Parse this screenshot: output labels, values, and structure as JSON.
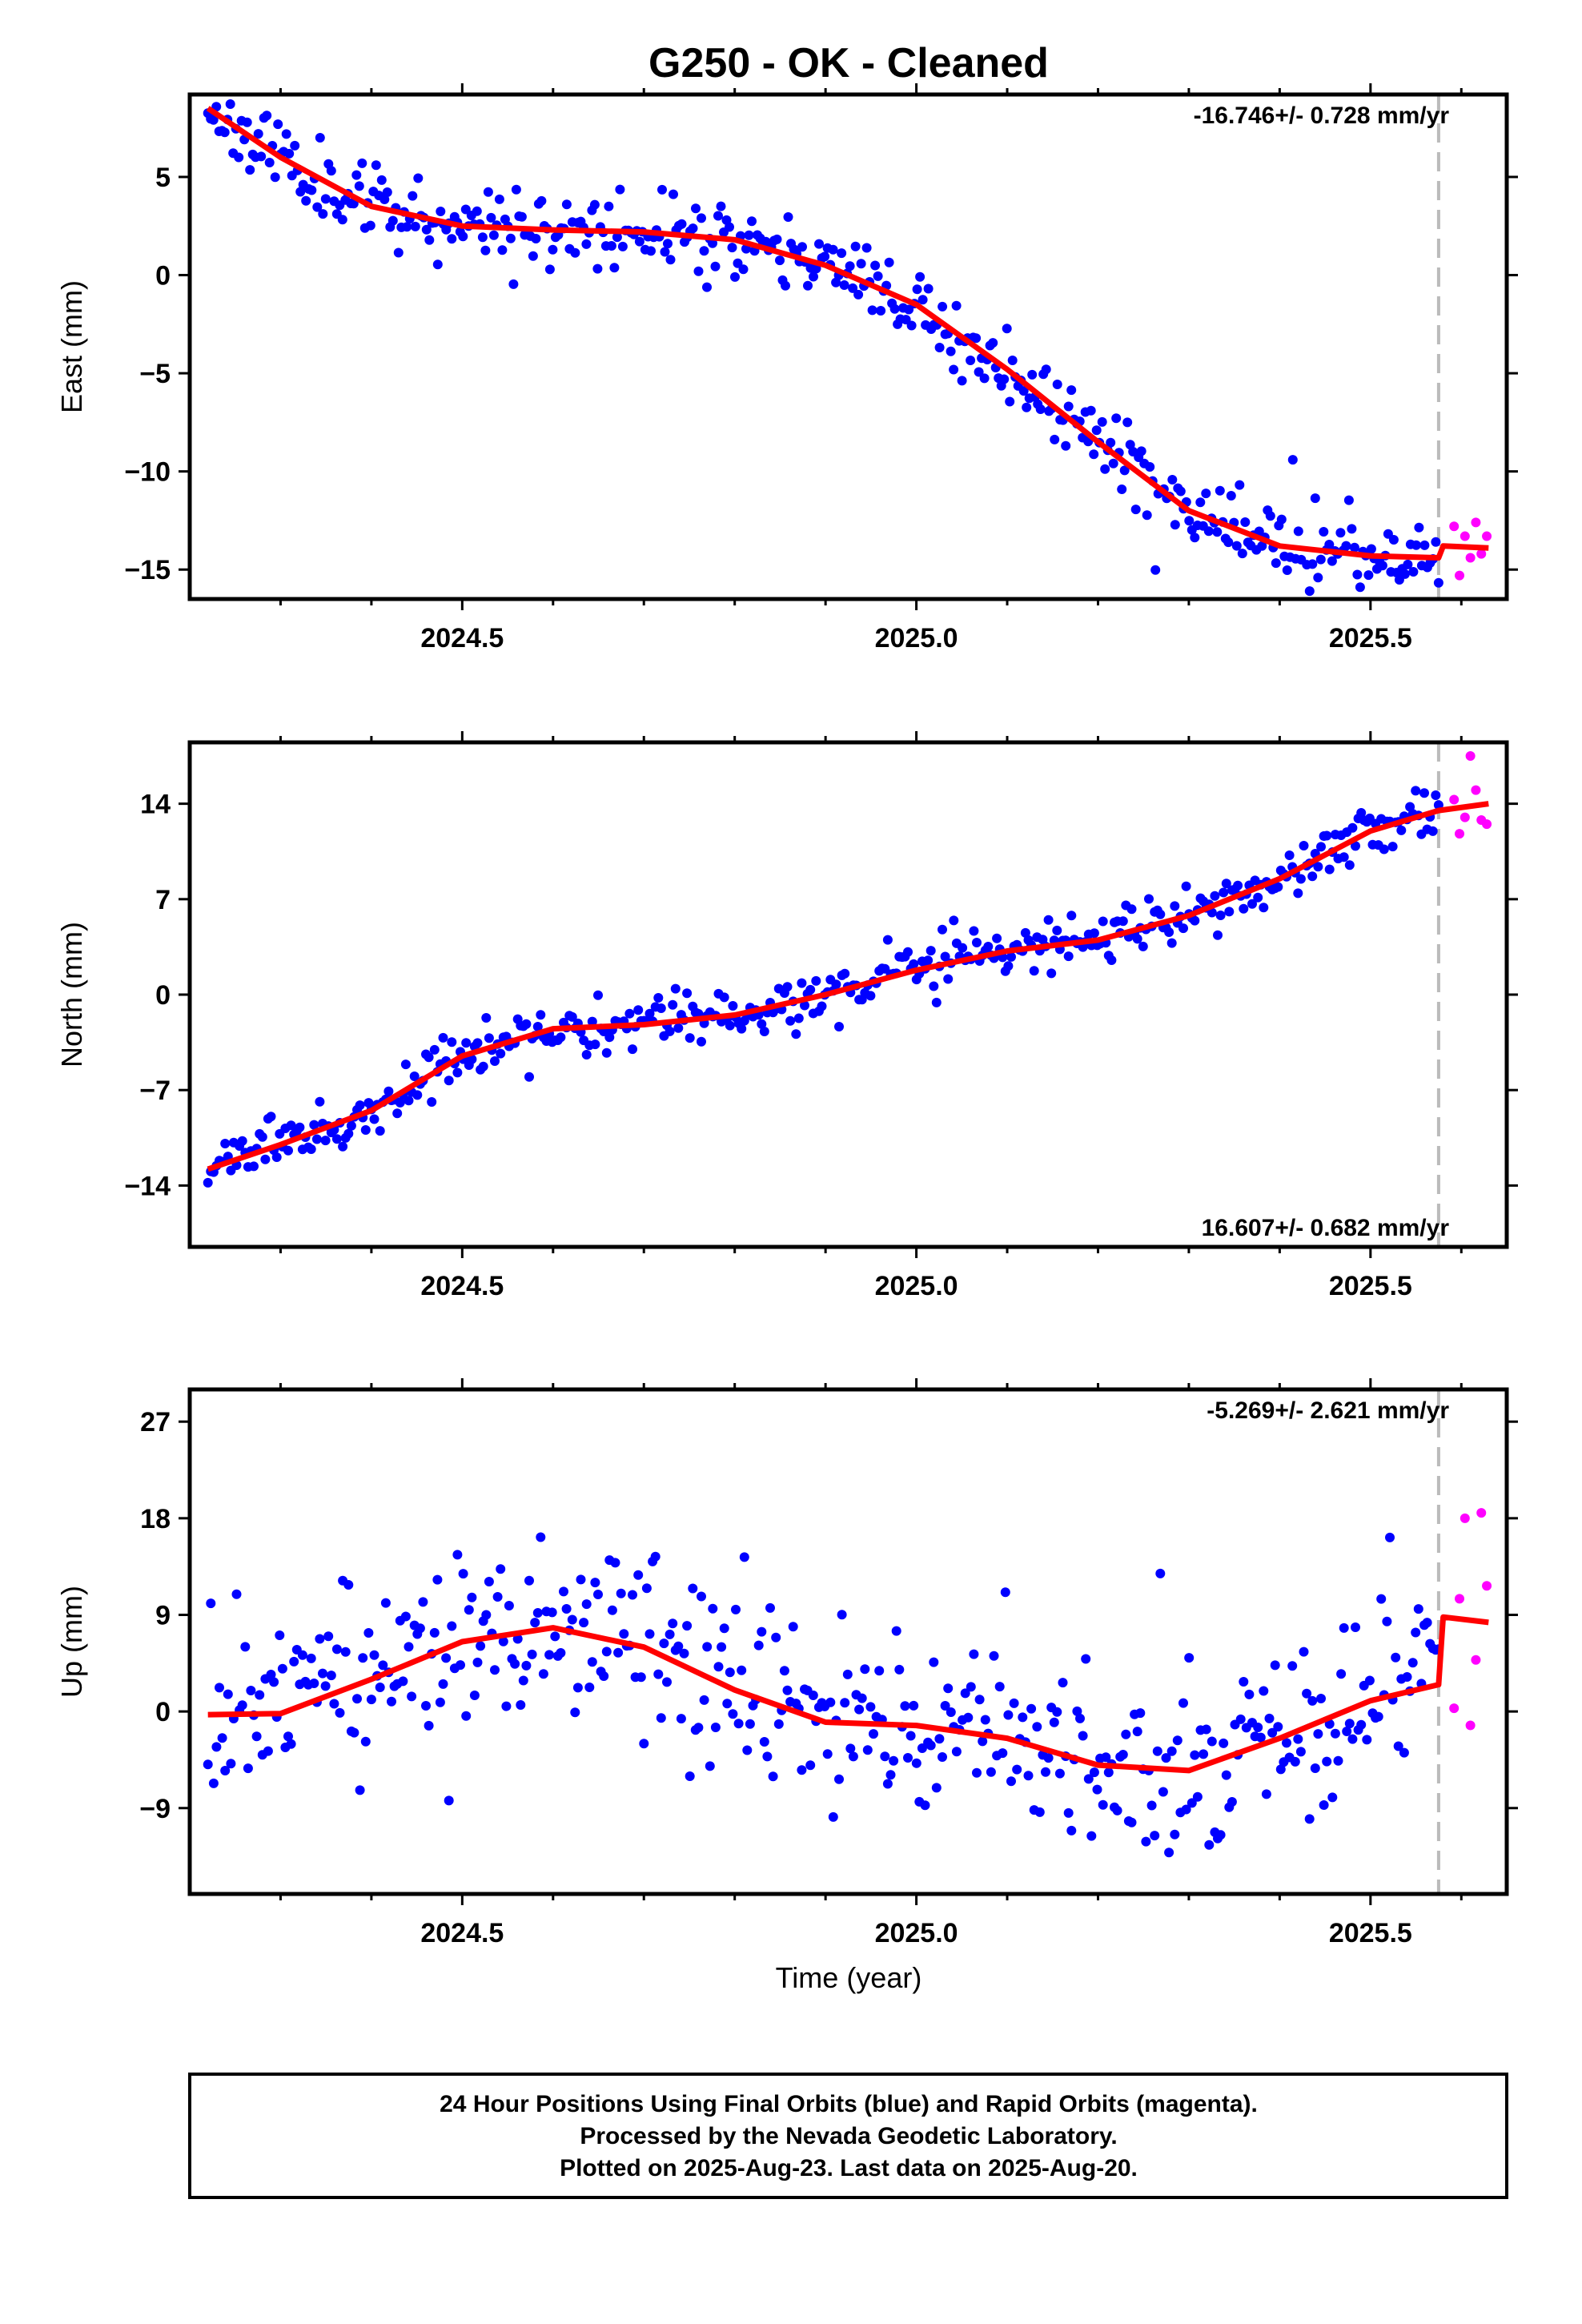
{
  "title": "G250  - OK - Cleaned",
  "x_axis_label": "Time (year)",
  "x_ticks": [
    "2024.5",
    "2025.0",
    "2025.5"
  ],
  "footer": {
    "line1": "24 Hour Positions Using Final Orbits (blue) and Rapid Orbits (magenta).",
    "line2": "Processed by the Nevada Geodetic Laboratory.",
    "line3": "Plotted on 2025-Aug-23. Last data on 2025-Aug-20."
  },
  "colors": {
    "final_orbits": "#0000ff",
    "rapid_orbits": "#ff00ff",
    "model_fit": "#ff0000",
    "cutoff_line": "#bbbbbb"
  },
  "chart_data": [
    {
      "type": "scatter",
      "ylabel": "East (mm)",
      "rate_label": "-16.746+/- 0.728 mm/yr",
      "rate_position": "top-right",
      "xlim": [
        2024.2,
        2025.65
      ],
      "ylim": [
        -16.5,
        9.2
      ],
      "yticks": [
        5,
        0,
        -5,
        -10,
        -15
      ],
      "ytick_labels": [
        "5",
        "0",
        "−5",
        "−10",
        "−15"
      ],
      "cutoff_x": 2025.575,
      "fit": {
        "x": [
          2024.22,
          2024.3,
          2024.4,
          2024.5,
          2024.6,
          2024.7,
          2024.8,
          2024.9,
          2025.0,
          2025.1,
          2025.2,
          2025.3,
          2025.4,
          2025.5,
          2025.575,
          2025.58,
          2025.63
        ],
        "y": [
          8.5,
          6.0,
          3.5,
          2.5,
          2.3,
          2.2,
          1.8,
          0.5,
          -1.5,
          -4.8,
          -8.5,
          -12.0,
          -13.8,
          -14.3,
          -14.4,
          -13.8,
          -13.9
        ]
      },
      "final_orbits": {
        "trend_x": [
          2024.22,
          2024.3,
          2024.4,
          2024.5,
          2024.6,
          2024.7,
          2024.8,
          2024.9,
          2025.0,
          2025.1,
          2025.2,
          2025.3,
          2025.4,
          2025.5,
          2025.575
        ],
        "trend_y": [
          8.5,
          6.0,
          3.5,
          2.5,
          2.3,
          2.2,
          1.8,
          0.5,
          -1.5,
          -4.8,
          -8.5,
          -12.0,
          -13.8,
          -14.3,
          -14.4
        ],
        "start": 2024.22,
        "end": 2025.575,
        "count": 440,
        "scatter_mm": 0.9,
        "seed": 11
      },
      "rapid_orbits": {
        "x": [
          2025.592,
          2025.598,
          2025.604,
          2025.61,
          2025.616,
          2025.622,
          2025.628
        ],
        "y": [
          -12.8,
          -15.3,
          -13.3,
          -14.4,
          -12.6,
          -14.2,
          -13.3
        ]
      }
    },
    {
      "type": "scatter",
      "ylabel": "North (mm)",
      "rate_label": "16.607+/- 0.682 mm/yr",
      "rate_position": "bottom-right",
      "xlim": [
        2024.2,
        2025.65
      ],
      "ylim": [
        -18.5,
        18.5
      ],
      "yticks": [
        14,
        7,
        0,
        -7,
        -14
      ],
      "ytick_labels": [
        "14",
        "7",
        "0",
        "−7",
        "−14"
      ],
      "cutoff_x": 2025.575,
      "fit": {
        "x": [
          2024.22,
          2024.3,
          2024.4,
          2024.5,
          2024.6,
          2024.7,
          2024.8,
          2024.9,
          2025.0,
          2025.1,
          2025.2,
          2025.3,
          2025.4,
          2025.5,
          2025.575,
          2025.63
        ],
        "y": [
          -12.8,
          -11.0,
          -8.5,
          -4.5,
          -2.5,
          -2.2,
          -1.5,
          0.0,
          1.8,
          3.2,
          4.0,
          5.8,
          8.5,
          12.0,
          13.5,
          14.0
        ]
      },
      "final_orbits": {
        "trend_x": [
          2024.22,
          2024.3,
          2024.4,
          2024.5,
          2024.6,
          2024.7,
          2024.8,
          2024.9,
          2025.0,
          2025.1,
          2025.2,
          2025.3,
          2025.4,
          2025.5,
          2025.575
        ],
        "trend_y": [
          -12.8,
          -11.0,
          -8.5,
          -4.5,
          -2.5,
          -2.2,
          -1.5,
          0.0,
          1.8,
          3.2,
          4.0,
          5.8,
          8.5,
          12.0,
          13.5
        ],
        "start": 2024.22,
        "end": 2025.575,
        "count": 430,
        "scatter_mm": 0.9,
        "seed": 23
      },
      "rapid_orbits": {
        "x": [
          2025.592,
          2025.598,
          2025.604,
          2025.61,
          2025.616,
          2025.622,
          2025.628
        ],
        "y": [
          14.3,
          11.8,
          13.0,
          17.5,
          15.0,
          12.8,
          12.5
        ]
      }
    },
    {
      "type": "scatter",
      "ylabel": "Up (mm)",
      "rate_label": "-5.269+/- 2.621 mm/yr",
      "rate_position": "top-right",
      "xlim": [
        2024.2,
        2025.65
      ],
      "ylim": [
        -17,
        30
      ],
      "yticks": [
        27,
        18,
        9,
        0,
        -9
      ],
      "ytick_labels": [
        "27",
        "18",
        "9",
        "0",
        "−9"
      ],
      "cutoff_x": 2025.575,
      "fit": {
        "x": [
          2024.22,
          2024.3,
          2024.4,
          2024.5,
          2024.6,
          2024.7,
          2024.8,
          2024.9,
          2025.0,
          2025.1,
          2025.2,
          2025.3,
          2025.4,
          2025.5,
          2025.575,
          2025.58,
          2025.63
        ],
        "y": [
          -0.3,
          -0.2,
          3.0,
          6.5,
          7.8,
          6.0,
          2.0,
          -1.0,
          -1.3,
          -2.5,
          -5.0,
          -5.5,
          -2.5,
          1.0,
          2.5,
          8.8,
          8.3
        ]
      },
      "final_orbits": {
        "trend_x": [
          2024.22,
          2024.3,
          2024.4,
          2024.5,
          2024.6,
          2024.7,
          2024.8,
          2024.9,
          2025.0,
          2025.1,
          2025.2,
          2025.3,
          2025.4,
          2025.5,
          2025.575
        ],
        "trend_y": [
          -0.3,
          -0.2,
          3.0,
          6.5,
          7.8,
          6.0,
          2.0,
          -1.0,
          -1.3,
          -2.5,
          -5.0,
          -5.5,
          -2.5,
          1.0,
          2.5
        ],
        "start": 2024.22,
        "end": 2025.575,
        "count": 430,
        "scatter_mm": 4.2,
        "seed": 37
      },
      "rapid_orbits": {
        "x": [
          2025.592,
          2025.598,
          2025.604,
          2025.61,
          2025.616,
          2025.622,
          2025.628
        ],
        "y": [
          0.3,
          10.5,
          18.0,
          -1.3,
          4.8,
          18.5,
          11.7
        ]
      }
    }
  ]
}
